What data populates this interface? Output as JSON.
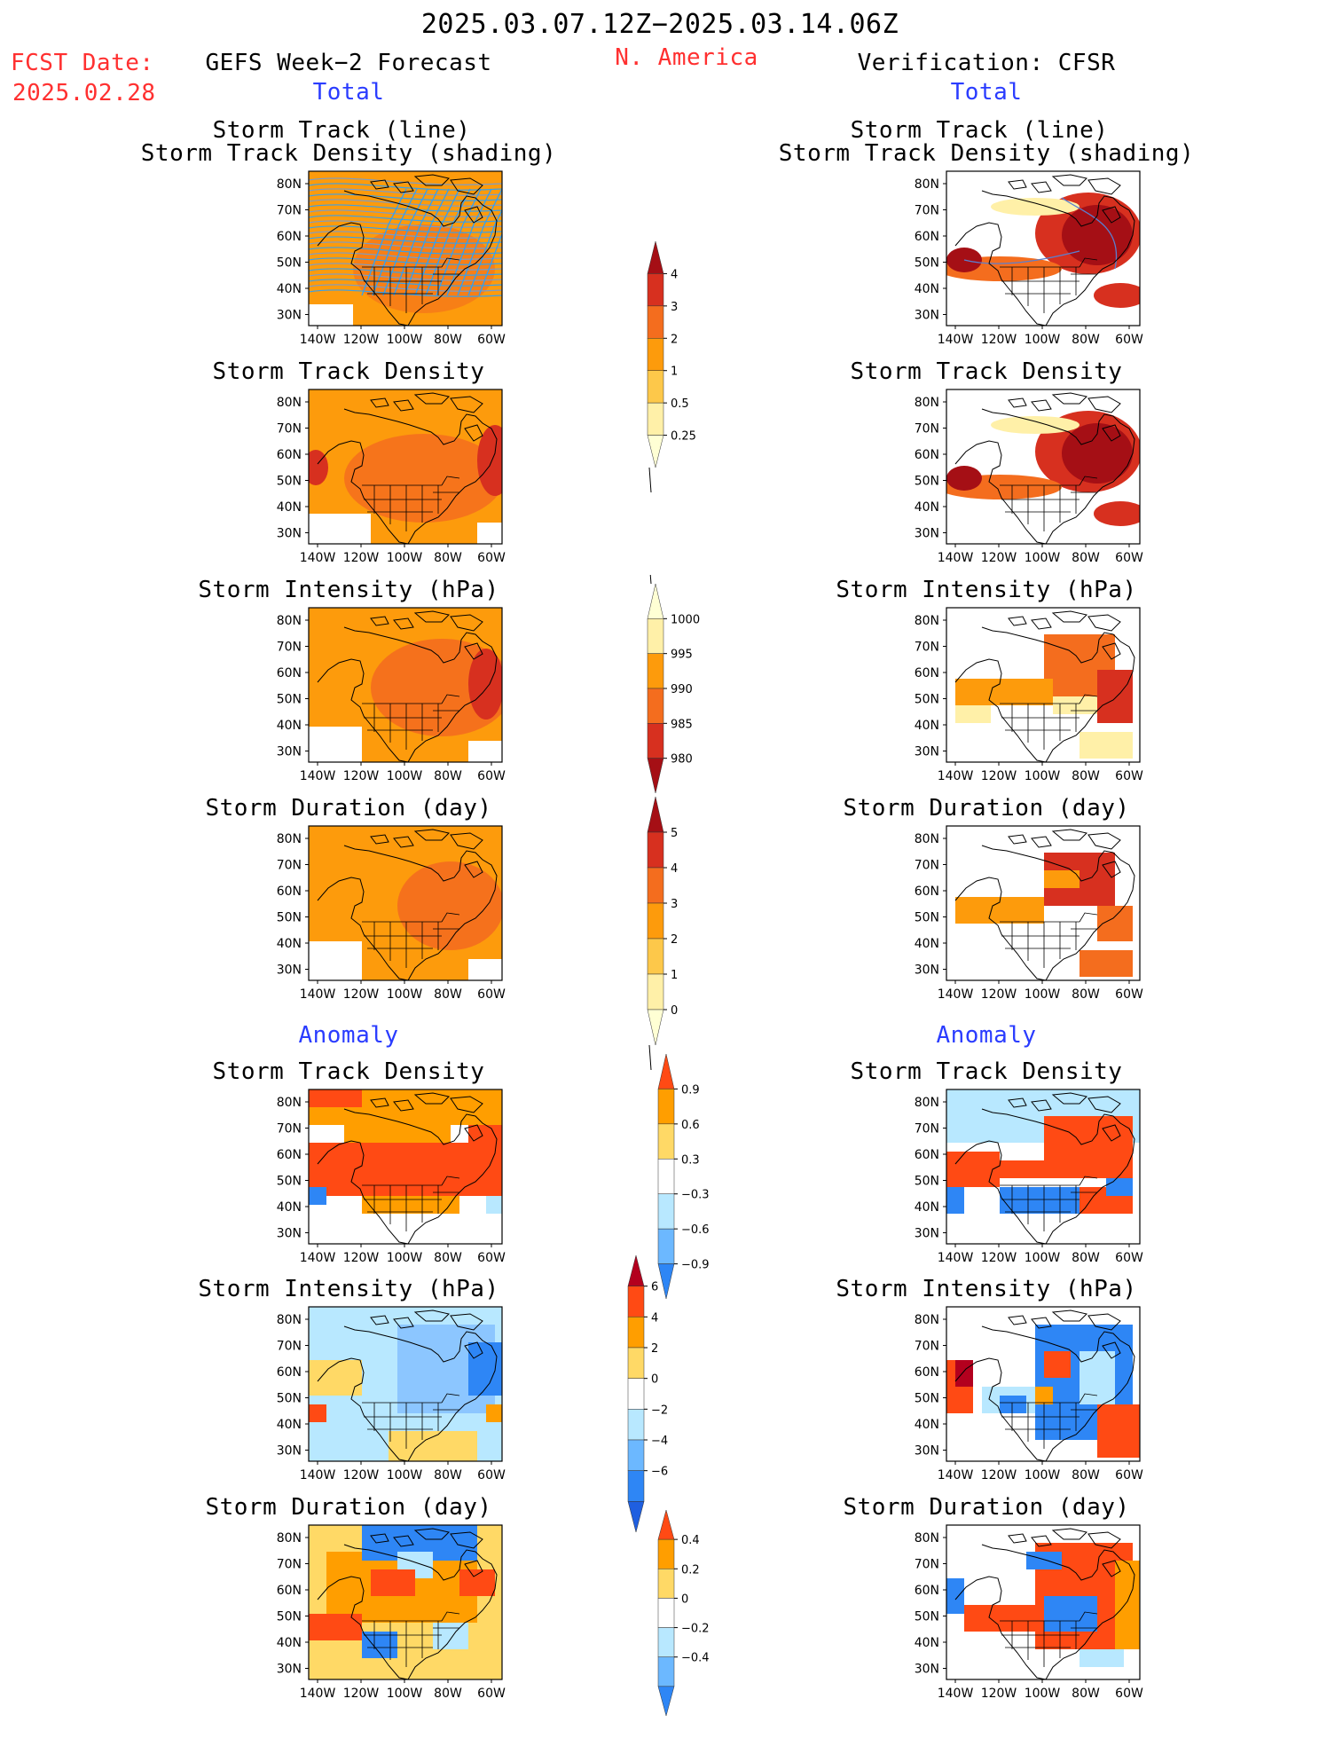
{
  "header": {
    "period": "2025.03.07.12Z−2025.03.14.06Z",
    "fcst_label": "FCST Date:",
    "fcst_date": "2025.02.28",
    "left_title": "GEFS Week−2 Forecast",
    "region": "N. America",
    "right_title": "Verification: CFSR"
  },
  "sections": {
    "total": "Total",
    "anomaly": "Anomaly"
  },
  "panel_titles": {
    "track_line": "Storm Track (line)",
    "track_shading": "Storm Track Density (shading)",
    "density": "Storm Track Density",
    "intensity": "Storm Intensity (hPa)",
    "duration": "Storm Duration (day)"
  },
  "axes": {
    "lat_ticks": [
      "80N",
      "70N",
      "60N",
      "50N",
      "40N",
      "30N"
    ],
    "lon_ticks": [
      "140W",
      "120W",
      "100W",
      "80W",
      "60W"
    ]
  },
  "colorbars": {
    "density_total": {
      "labels": [
        "4",
        "3",
        "2",
        "1",
        "0.5",
        "0.25"
      ],
      "colors": [
        "#a50f15",
        "#d7301f",
        "#f46d1e",
        "#fd9b0c",
        "#fdc84a",
        "#fff0a8",
        "#ffffd4"
      ]
    },
    "intensity_total": {
      "labels": [
        "1000",
        "995",
        "990",
        "985",
        "980"
      ],
      "colors": [
        "#ffffd4",
        "#fff0a8",
        "#fd9b0c",
        "#f46d1e",
        "#d7301f",
        "#a50f15"
      ]
    },
    "duration_total": {
      "labels": [
        "5",
        "4",
        "3",
        "2",
        "1",
        "0"
      ],
      "colors": [
        "#a50f15",
        "#d7301f",
        "#f46d1e",
        "#fd9b0c",
        "#fdc84a",
        "#fff0a8",
        "#ffffd4"
      ]
    },
    "density_anom": {
      "labels": [
        "0.9",
        "0.6",
        "0.3",
        "−0.3",
        "−0.6",
        "−0.9"
      ],
      "colors": [
        "#ff4a14",
        "#ff9e00",
        "#ffd966",
        "#ffffff",
        "#b8e8ff",
        "#6cb8ff",
        "#2e86f5"
      ]
    },
    "intensity_anom": {
      "labels": [
        "6",
        "4",
        "2",
        "0",
        "−2",
        "−4",
        "−6"
      ],
      "colors": [
        "#b3001e",
        "#ff4a14",
        "#ff9e00",
        "#ffd966",
        "#ffffff",
        "#b8e8ff",
        "#6cb8ff",
        "#2e86f5",
        "#1f5fe0"
      ]
    },
    "duration_anom": {
      "labels": [
        "0.4",
        "0.2",
        "0",
        "−0.2",
        "−0.4"
      ],
      "colors": [
        "#ff4a14",
        "#ff9e00",
        "#ffd966",
        "#ffffff",
        "#b8e8ff",
        "#6cb8ff",
        "#2e86f5"
      ]
    }
  },
  "palette": {
    "pale": "#fff0a8",
    "orange": "#fd9b0c",
    "dkorange": "#f46d1e",
    "red": "#d7301f",
    "darkred": "#a50f15",
    "ltblue": "#b8e8ff",
    "blue": "#2e86f5",
    "anom_orange": "#ff9e00",
    "anom_red": "#ff4a14"
  }
}
